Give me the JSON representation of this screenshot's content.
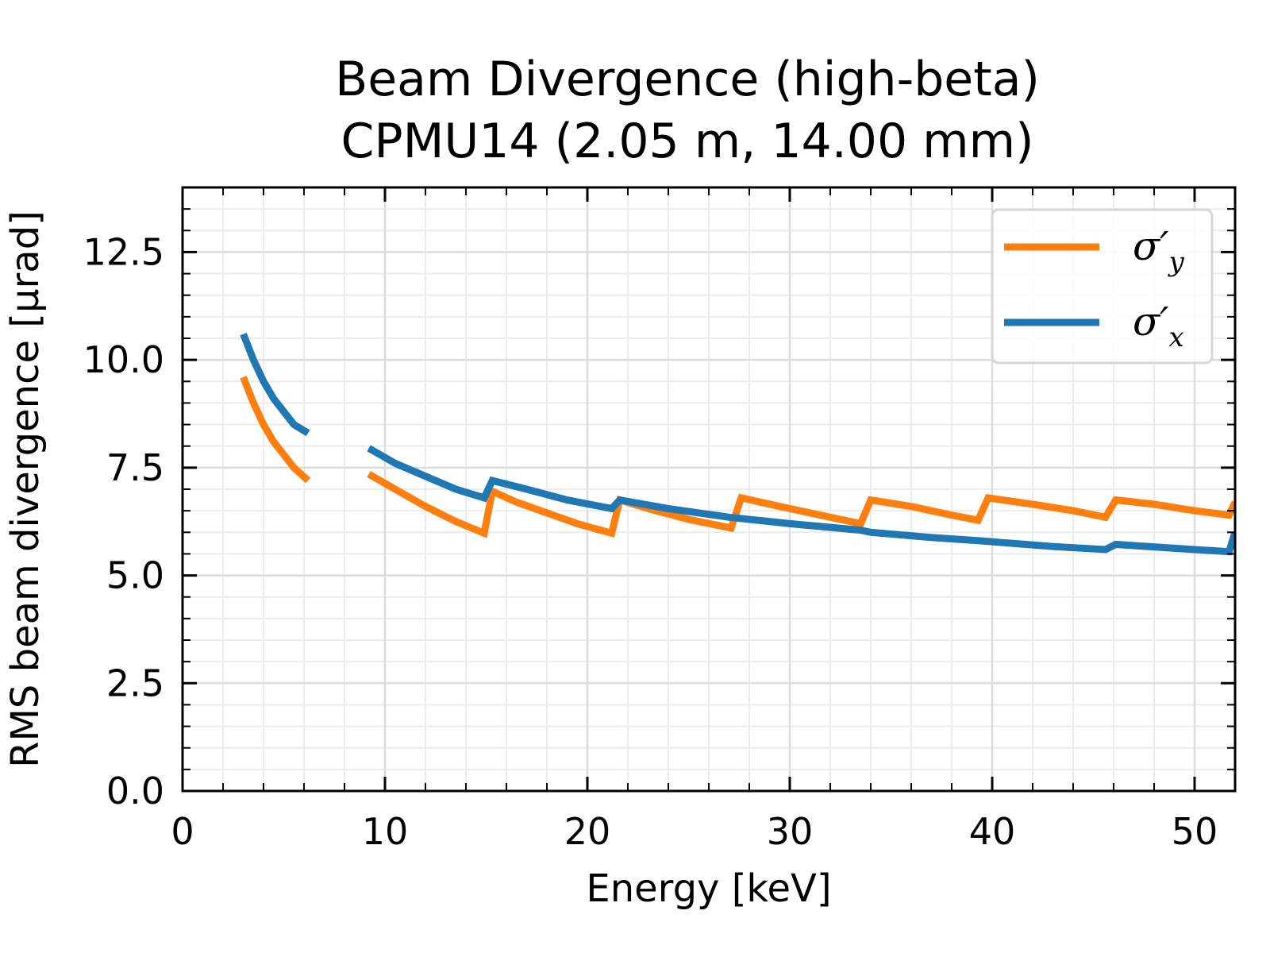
{
  "chart_data": {
    "type": "line",
    "title": "Beam Divergence (high-beta)",
    "subtitle": "CPMU14 (2.05 m, 14.00 mm)",
    "xlabel": "Energy [keV]",
    "ylabel": "RMS beam divergence [μrad]",
    "xlim": [
      0,
      52
    ],
    "ylim": [
      0,
      14
    ],
    "x_ticks": [
      0,
      10,
      20,
      30,
      40,
      50
    ],
    "y_ticks": [
      0.0,
      2.5,
      5.0,
      7.5,
      10.0,
      12.5
    ],
    "x_tick_labels": [
      "0",
      "10",
      "20",
      "30",
      "40",
      "50"
    ],
    "y_tick_labels": [
      "0.0",
      "2.5",
      "5.0",
      "7.5",
      "10.0",
      "12.5"
    ],
    "grid": true,
    "legend_position": "top-right",
    "series": [
      {
        "name": "σ′y",
        "legend_main": "σ′",
        "legend_sub": "y",
        "color": "#ff7f0e",
        "segments": [
          {
            "x": [
              3.0,
              3.5,
              4.0,
              4.5,
              5.0,
              5.5,
              6.2
            ],
            "y": [
              9.6,
              9.0,
              8.5,
              8.1,
              7.8,
              7.5,
              7.2
            ]
          },
          {
            "x": [
              9.2,
              10.5,
              12.0,
              13.5,
              14.9,
              15.3,
              16.5,
              18.0,
              19.5,
              21.2,
              21.6,
              23.0,
              25.0,
              27.1,
              27.6,
              29.5,
              31.5,
              33.5,
              34.0,
              36.0,
              38.0,
              39.3,
              39.8,
              42.0,
              44.0,
              45.6,
              46.1,
              48.0,
              50.0,
              51.7,
              52.0
            ],
            "y": [
              7.35,
              7.0,
              6.6,
              6.25,
              5.98,
              6.95,
              6.7,
              6.45,
              6.2,
              5.98,
              6.75,
              6.55,
              6.3,
              6.1,
              6.8,
              6.6,
              6.4,
              6.2,
              6.75,
              6.6,
              6.4,
              6.28,
              6.8,
              6.65,
              6.5,
              6.35,
              6.75,
              6.65,
              6.5,
              6.4,
              6.7
            ]
          }
        ]
      },
      {
        "name": "σ′x",
        "legend_main": "σ′",
        "legend_sub": "x",
        "color": "#1f77b4",
        "segments": [
          {
            "x": [
              3.0,
              3.5,
              4.0,
              4.5,
              5.0,
              5.5,
              6.2
            ],
            "y": [
              10.6,
              10.0,
              9.5,
              9.1,
              8.8,
              8.5,
              8.3
            ]
          },
          {
            "x": [
              9.2,
              10.5,
              12.0,
              13.5,
              14.9,
              15.3,
              17.0,
              19.0,
              21.2,
              21.6,
              24.0,
              27.0,
              30.0,
              33.5,
              34.0,
              37.0,
              39.5,
              40.0,
              43.0,
              45.6,
              46.1,
              49.0,
              51.7,
              52.0
            ],
            "y": [
              7.95,
              7.6,
              7.3,
              7.0,
              6.8,
              7.2,
              7.0,
              6.75,
              6.55,
              6.75,
              6.55,
              6.35,
              6.2,
              6.05,
              6.0,
              5.88,
              5.8,
              5.78,
              5.67,
              5.6,
              5.72,
              5.63,
              5.55,
              6.0
            ]
          }
        ]
      }
    ]
  }
}
